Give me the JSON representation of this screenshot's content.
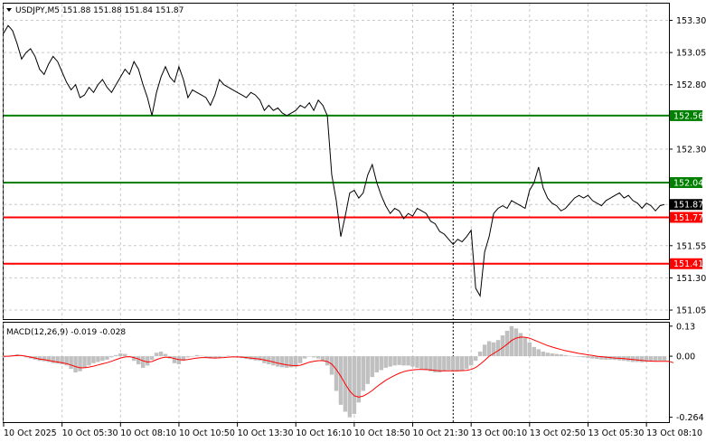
{
  "chart_data": [
    {
      "type": "line",
      "panel": "price",
      "symbol": "USDJPY",
      "timeframe": "M5",
      "ohlc": {
        "open": "151.88",
        "high": "151.88",
        "low": "151.84",
        "close": "151.87"
      },
      "title": "USDJPY,M5  151.88 151.88 151.84 151.87",
      "ylim": [
        150.98,
        153.43
      ],
      "y_ticks": [
        "153.30",
        "153.05",
        "152.80",
        "152.56",
        "152.30",
        "152.04",
        "151.87",
        "151.77",
        "151.55",
        "151.41",
        "151.30",
        "151.05"
      ],
      "horizontal_lines": [
        {
          "value": 152.56,
          "label": "152.56",
          "color": "#008000"
        },
        {
          "value": 152.04,
          "label": "152.04",
          "color": "#008000"
        },
        {
          "value": 151.77,
          "label": "151.77",
          "color": "#ff0000"
        },
        {
          "value": 151.41,
          "label": "151.41",
          "color": "#ff0000"
        }
      ],
      "current_price": {
        "value": 151.87,
        "label": "151.87",
        "color": "#000000"
      },
      "period_separator_x": 100,
      "x_range": [
        0,
        148
      ],
      "series": [
        {
          "values": [
            153.2,
            153.26,
            153.22,
            153.12,
            153.0,
            153.05,
            153.08,
            153.02,
            152.92,
            152.88,
            152.96,
            153.02,
            152.98,
            152.9,
            152.82,
            152.76,
            152.8,
            152.7,
            152.72,
            152.78,
            152.74,
            152.8,
            152.84,
            152.78,
            152.74,
            152.8,
            152.86,
            152.92,
            152.88,
            152.98,
            152.92,
            152.8,
            152.7,
            152.56,
            152.74,
            152.86,
            152.94,
            152.86,
            152.82,
            152.94,
            152.84,
            152.7,
            152.76,
            152.74,
            152.72,
            152.7,
            152.64,
            152.72,
            152.84,
            152.8,
            152.78,
            152.76,
            152.74,
            152.72,
            152.7,
            152.74,
            152.72,
            152.68,
            152.6,
            152.64,
            152.6,
            152.62,
            152.58,
            152.56,
            152.58,
            152.6,
            152.64,
            152.62,
            152.66,
            152.6,
            152.68,
            152.64,
            152.56,
            152.1,
            151.9,
            151.62,
            151.78,
            151.96,
            151.98,
            151.92,
            151.96,
            152.1,
            152.18,
            152.04,
            151.94,
            151.86,
            151.8,
            151.84,
            151.82,
            151.76,
            151.8,
            151.78,
            151.84,
            151.82,
            151.8,
            151.74,
            151.72,
            151.66,
            151.64,
            151.6,
            151.56,
            151.6,
            151.58,
            151.62,
            151.67,
            151.22,
            151.16,
            151.5,
            151.62,
            151.8,
            151.84,
            151.86,
            151.84,
            151.9,
            151.88,
            151.86,
            151.84,
            151.98,
            152.04,
            152.16,
            152.0,
            151.92,
            151.88,
            151.86,
            151.82,
            151.84,
            151.88,
            151.92,
            151.94,
            151.92,
            151.94,
            151.9,
            151.88,
            151.86,
            151.9,
            151.92,
            151.94,
            151.96,
            151.92,
            151.94,
            151.9,
            151.88,
            151.84,
            151.88,
            151.86,
            151.82,
            151.86,
            151.87
          ]
        }
      ]
    },
    {
      "type": "bar",
      "panel": "indicator",
      "title": "MACD(12,26,9) -0.019 -0.028",
      "ylim": [
        -0.285,
        0.145
      ],
      "y_ticks": [
        "0.13",
        "0.00",
        "-0.264"
      ],
      "histogram_color": "#c0c0c0",
      "signal_color": "#ff0000",
      "series": [
        {
          "kind": "histogram",
          "values": [
            -0.005,
            0.0,
            0.005,
            0.008,
            0.003,
            -0.005,
            -0.01,
            -0.015,
            -0.02,
            -0.022,
            -0.025,
            -0.03,
            -0.032,
            -0.035,
            -0.04,
            -0.055,
            -0.07,
            -0.065,
            -0.05,
            -0.04,
            -0.03,
            -0.025,
            -0.02,
            -0.015,
            -0.005,
            0.005,
            0.012,
            0.01,
            0.0,
            -0.02,
            -0.035,
            -0.05,
            -0.04,
            -0.015,
            0.015,
            0.02,
            0.01,
            -0.01,
            -0.03,
            -0.035,
            -0.02,
            -0.005,
            0.0,
            0.005,
            0.002,
            -0.005,
            -0.01,
            -0.01,
            -0.005,
            0.0,
            0.002,
            0.0,
            -0.005,
            -0.008,
            -0.012,
            -0.015,
            -0.018,
            -0.02,
            -0.03,
            -0.035,
            -0.04,
            -0.045,
            -0.048,
            -0.05,
            -0.048,
            -0.045,
            -0.03,
            -0.01,
            0.0,
            -0.005,
            -0.01,
            -0.02,
            -0.04,
            -0.08,
            -0.15,
            -0.21,
            -0.24,
            -0.264,
            -0.25,
            -0.2,
            -0.15,
            -0.12,
            -0.09,
            -0.07,
            -0.06,
            -0.05,
            -0.045,
            -0.04,
            -0.038,
            -0.04,
            -0.04,
            -0.045,
            -0.05,
            -0.055,
            -0.06,
            -0.065,
            -0.07,
            -0.07,
            -0.065,
            -0.06,
            -0.065,
            -0.065,
            -0.06,
            -0.055,
            -0.04,
            -0.02,
            0.02,
            0.05,
            0.065,
            0.06,
            0.07,
            0.09,
            0.11,
            0.13,
            0.12,
            0.1,
            0.08,
            0.06,
            0.04,
            0.03,
            0.02,
            0.015,
            0.012,
            0.01,
            0.008,
            0.005,
            0.002,
            0.0,
            -0.003,
            -0.005,
            -0.008,
            -0.01,
            -0.012,
            -0.014,
            -0.015,
            -0.015,
            -0.016,
            -0.018,
            -0.02,
            -0.022,
            -0.025,
            -0.025,
            -0.026,
            -0.024,
            -0.022,
            -0.02,
            -0.019,
            -0.019
          ]
        },
        {
          "kind": "signal",
          "values": [
            0.0,
            0.0,
            0.001,
            0.003,
            0.003,
            0.0,
            -0.004,
            -0.008,
            -0.012,
            -0.015,
            -0.018,
            -0.022,
            -0.025,
            -0.028,
            -0.032,
            -0.038,
            -0.045,
            -0.05,
            -0.05,
            -0.047,
            -0.043,
            -0.038,
            -0.033,
            -0.028,
            -0.022,
            -0.015,
            -0.008,
            -0.003,
            -0.002,
            -0.006,
            -0.012,
            -0.02,
            -0.025,
            -0.023,
            -0.015,
            -0.008,
            -0.004,
            -0.005,
            -0.01,
            -0.015,
            -0.016,
            -0.014,
            -0.011,
            -0.008,
            -0.006,
            -0.006,
            -0.007,
            -0.008,
            -0.007,
            -0.006,
            -0.004,
            -0.003,
            -0.003,
            -0.004,
            -0.006,
            -0.008,
            -0.01,
            -0.012,
            -0.016,
            -0.02,
            -0.025,
            -0.03,
            -0.034,
            -0.038,
            -0.04,
            -0.041,
            -0.039,
            -0.033,
            -0.026,
            -0.022,
            -0.019,
            -0.019,
            -0.023,
            -0.034,
            -0.057,
            -0.087,
            -0.12,
            -0.151,
            -0.171,
            -0.177,
            -0.172,
            -0.162,
            -0.148,
            -0.132,
            -0.118,
            -0.104,
            -0.093,
            -0.083,
            -0.074,
            -0.067,
            -0.062,
            -0.059,
            -0.057,
            -0.057,
            -0.058,
            -0.059,
            -0.061,
            -0.063,
            -0.063,
            -0.063,
            -0.063,
            -0.063,
            -0.062,
            -0.061,
            -0.057,
            -0.049,
            -0.035,
            -0.018,
            -0.0,
            0.012,
            0.024,
            0.037,
            0.052,
            0.068,
            0.078,
            0.083,
            0.082,
            0.078,
            0.07,
            0.062,
            0.054,
            0.046,
            0.04,
            0.034,
            0.029,
            0.024,
            0.02,
            0.016,
            0.012,
            0.009,
            0.006,
            0.003,
            0.0,
            -0.002,
            -0.004,
            -0.006,
            -0.008,
            -0.009,
            -0.01,
            -0.012,
            -0.014,
            -0.016,
            -0.018,
            -0.02,
            -0.021,
            -0.022,
            -0.022,
            -0.022,
            -0.022,
            -0.028
          ]
        }
      ]
    }
  ],
  "x_axis": {
    "tick_labels": [
      "10 Oct 2025",
      "10 Oct 05:30",
      "10 Oct 08:10",
      "10 Oct 10:50",
      "10 Oct 13:30",
      "10 Oct 16:10",
      "10 Oct 18:50",
      "10 Oct 21:30",
      "13 Oct 00:10",
      "13 Oct 02:50",
      "13 Oct 05:30",
      "13 Oct 08:10"
    ],
    "tick_positions": [
      0,
      13,
      26,
      39,
      52,
      65,
      78,
      91,
      104,
      117,
      130,
      143
    ]
  }
}
